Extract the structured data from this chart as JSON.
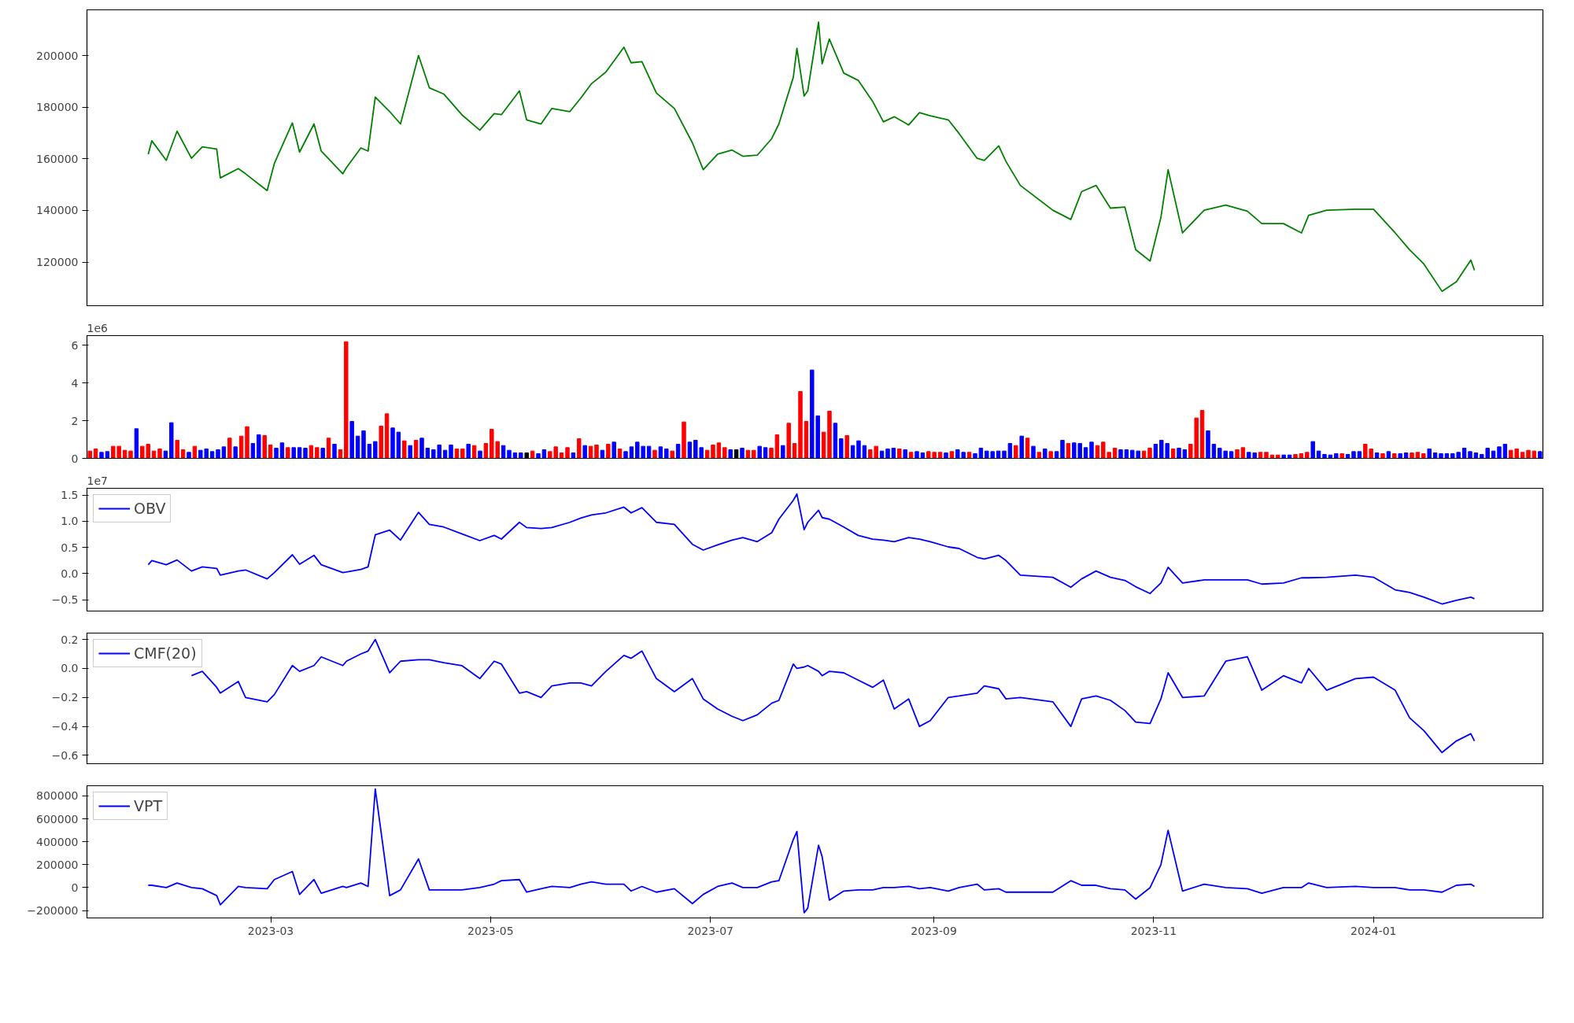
{
  "chart_data": [
    {
      "type": "line",
      "xlim": [
        "2023-01-09",
        "2024-02-17"
      ],
      "ylim": [
        103100,
        217700
      ],
      "yticks": [
        120000,
        140000,
        160000,
        180000,
        200000
      ],
      "tick_labels": "y",
      "x": [
        "2023-01-26",
        "2023-01-27",
        "2023-01-31",
        "2023-02-03",
        "2023-02-07",
        "2023-02-10",
        "2023-02-14",
        "2023-02-15",
        "2023-02-20",
        "2023-02-22",
        "2023-02-28",
        "2023-03-02",
        "2023-03-07",
        "2023-03-09",
        "2023-03-13",
        "2023-03-15",
        "2023-03-21",
        "2023-03-22",
        "2023-03-26",
        "2023-03-28",
        "2023-03-30",
        "2023-04-03",
        "2023-04-06",
        "2023-04-11",
        "2023-04-14",
        "2023-04-18",
        "2023-04-23",
        "2023-04-28",
        "2023-05-02",
        "2023-05-04",
        "2023-05-09",
        "2023-05-11",
        "2023-05-15",
        "2023-05-18",
        "2023-05-23",
        "2023-05-26",
        "2023-05-29",
        "2023-06-02",
        "2023-06-07",
        "2023-06-09",
        "2023-06-12",
        "2023-06-16",
        "2023-06-21",
        "2023-06-26",
        "2023-06-29",
        "2023-07-03",
        "2023-07-07",
        "2023-07-10",
        "2023-07-14",
        "2023-07-18",
        "2023-07-20",
        "2023-07-24",
        "2023-07-25",
        "2023-07-27",
        "2023-07-28",
        "2023-07-31",
        "2023-08-01",
        "2023-08-03",
        "2023-08-07",
        "2023-08-11",
        "2023-08-15",
        "2023-08-18",
        "2023-08-21",
        "2023-08-25",
        "2023-08-28",
        "2023-08-31",
        "2023-09-05",
        "2023-09-08",
        "2023-09-13",
        "2023-09-15",
        "2023-09-19",
        "2023-09-21",
        "2023-09-25",
        "2023-10-04",
        "2023-10-09",
        "2023-10-12",
        "2023-10-16",
        "2023-10-20",
        "2023-10-24",
        "2023-10-27",
        "2023-10-31",
        "2023-11-03",
        "2023-11-05",
        "2023-11-09",
        "2023-11-15",
        "2023-11-21",
        "2023-11-27",
        "2023-12-01",
        "2023-12-07",
        "2023-12-12",
        "2023-12-14",
        "2023-12-19",
        "2023-12-27",
        "2024-01-01",
        "2024-01-07",
        "2024-01-11",
        "2024-01-15",
        "2024-01-20",
        "2024-01-24",
        "2024-01-28",
        "2024-01-29"
      ],
      "series": [
        {
          "color": "#008000",
          "values": [
            161800,
            167000,
            159400,
            170700,
            160200,
            164600,
            163800,
            152600,
            156200,
            154200,
            147700,
            158200,
            173900,
            162600,
            173500,
            163000,
            154200,
            156600,
            164200,
            163000,
            183900,
            178300,
            173500,
            200000,
            187500,
            185100,
            177100,
            171100,
            177500,
            177100,
            186300,
            175100,
            173500,
            179500,
            178300,
            183500,
            189100,
            193600,
            203200,
            197200,
            197600,
            185500,
            179500,
            166200,
            155800,
            161800,
            163400,
            161000,
            161400,
            167800,
            173500,
            191600,
            202800,
            184300,
            186300,
            212900,
            196800,
            206400,
            193200,
            190400,
            182300,
            174300,
            176300,
            173100,
            177900,
            176700,
            175100,
            169800,
            160200,
            159400,
            165000,
            159000,
            149700,
            140100,
            136500,
            147300,
            149700,
            140900,
            141300,
            124800,
            120400,
            137300,
            155800,
            131300,
            140100,
            142100,
            139700,
            134900,
            134900,
            131300,
            138100,
            140100,
            140500,
            140500,
            131300,
            124800,
            119200,
            108700,
            112400,
            120800,
            116800
          ]
        }
      ]
    },
    {
      "type": "bar",
      "ylim": [
        0,
        6.5
      ],
      "yticks": [
        0,
        2,
        4,
        6
      ],
      "tick_labels": "y",
      "annotations": [
        "1e6"
      ],
      "categories": [
        null,
        null,
        null,
        null,
        null,
        null,
        null,
        null,
        null,
        null,
        null,
        null,
        null,
        null,
        null,
        null,
        null,
        null,
        null,
        null,
        null,
        null,
        null,
        null,
        null,
        null,
        null,
        null,
        null,
        null,
        null,
        null,
        null,
        null,
        null,
        null,
        null,
        null,
        null,
        null,
        null,
        null,
        null,
        null,
        null,
        null,
        null,
        null,
        null,
        null,
        null,
        null,
        null,
        null,
        null,
        null,
        null,
        null,
        null,
        null,
        null,
        null,
        null,
        null,
        null,
        null,
        null,
        null,
        null,
        null,
        null,
        null,
        null,
        null,
        null,
        null,
        null,
        null,
        null,
        null,
        null,
        null,
        null,
        null,
        null,
        null,
        null,
        null,
        null,
        null,
        null,
        null,
        null,
        null,
        null,
        null,
        null,
        null,
        null,
        null,
        null,
        null,
        null,
        null,
        null,
        null,
        null,
        null,
        null,
        null,
        null,
        null,
        null,
        null,
        null,
        null,
        null,
        null,
        null,
        null,
        null,
        null,
        null,
        null,
        null,
        null,
        null,
        null,
        null,
        null,
        null,
        null,
        null,
        null,
        null,
        null,
        null,
        null,
        null,
        null,
        null,
        null,
        null,
        null,
        null,
        null,
        null,
        null,
        null,
        null,
        null,
        null,
        null,
        null,
        null,
        null,
        null,
        null,
        null,
        null,
        null,
        null,
        null,
        null,
        null,
        null,
        null,
        null,
        null,
        null,
        null,
        null,
        null,
        null,
        null,
        null,
        null,
        null,
        null,
        null,
        null,
        null,
        null,
        null,
        null,
        null,
        null,
        null,
        null,
        null,
        null,
        null,
        null,
        null,
        null,
        null,
        null,
        null,
        null,
        null,
        null,
        null,
        null,
        null,
        null,
        null,
        null,
        null,
        null,
        null,
        null,
        null,
        null,
        null,
        null,
        null,
        null,
        null,
        null,
        null,
        null,
        null,
        null,
        null,
        null,
        null,
        null,
        null,
        null,
        null,
        null,
        null,
        null,
        null,
        null,
        null,
        null,
        null,
        null,
        null,
        null,
        null,
        null,
        null,
        null,
        null,
        null,
        null,
        null,
        null
      ],
      "values": [
        0.39,
        0.5,
        0.32,
        0.36,
        0.64,
        0.64,
        0.43,
        0.39,
        1.57,
        0.64,
        0.75,
        0.39,
        0.5,
        0.39,
        1.89,
        0.96,
        0.46,
        0.32,
        0.64,
        0.43,
        0.5,
        0.36,
        0.46,
        0.61,
        1.07,
        0.61,
        1.18,
        1.68,
        0.79,
        1.25,
        1.21,
        0.71,
        0.54,
        0.82,
        0.57,
        0.57,
        0.57,
        0.54,
        0.68,
        0.57,
        0.54,
        1.07,
        0.75,
        0.46,
        6.18,
        1.96,
        1.18,
        1.46,
        0.75,
        0.89,
        1.71,
        2.36,
        1.61,
        1.39,
        0.93,
        0.68,
        0.96,
        1.07,
        0.54,
        0.46,
        0.71,
        0.43,
        0.71,
        0.5,
        0.5,
        0.75,
        0.68,
        0.39,
        0.79,
        1.54,
        0.89,
        0.68,
        0.43,
        0.29,
        0.29,
        0.29,
        0.39,
        0.25,
        0.46,
        0.36,
        0.61,
        0.29,
        0.57,
        0.29,
        1.04,
        0.68,
        0.64,
        0.71,
        0.43,
        0.75,
        0.86,
        0.5,
        0.36,
        0.61,
        0.86,
        0.64,
        0.64,
        0.43,
        0.61,
        0.5,
        0.39,
        0.75,
        1.93,
        0.86,
        0.96,
        0.57,
        0.43,
        0.71,
        0.82,
        0.57,
        0.46,
        0.46,
        0.54,
        0.43,
        0.43,
        0.64,
        0.57,
        0.54,
        1.25,
        0.68,
        1.86,
        0.79,
        3.54,
        1.96,
        4.68,
        2.25,
        1.39,
        2.5,
        1.86,
        1.04,
        1.21,
        0.68,
        0.93,
        0.68,
        0.46,
        0.64,
        0.39,
        0.5,
        0.54,
        0.5,
        0.46,
        0.32,
        0.36,
        0.29,
        0.36,
        0.32,
        0.32,
        0.29,
        0.36,
        0.46,
        0.32,
        0.32,
        0.25,
        0.54,
        0.39,
        0.36,
        0.39,
        0.39,
        0.79,
        0.68,
        1.18,
        1.07,
        0.64,
        0.32,
        0.5,
        0.36,
        0.36,
        0.96,
        0.79,
        0.82,
        0.79,
        0.57,
        0.86,
        0.68,
        0.86,
        0.32,
        0.54,
        0.46,
        0.46,
        0.43,
        0.39,
        0.39,
        0.54,
        0.75,
        0.96,
        0.79,
        0.5,
        0.54,
        0.46,
        0.75,
        2.14,
        2.54,
        1.46,
        0.75,
        0.54,
        0.39,
        0.36,
        0.46,
        0.57,
        0.32,
        0.29,
        0.32,
        0.32,
        0.18,
        0.18,
        0.18,
        0.18,
        0.21,
        0.25,
        0.32,
        0.89,
        0.39,
        0.21,
        0.18,
        0.25,
        0.25,
        0.21,
        0.36,
        0.36,
        0.75,
        0.5,
        0.29,
        0.25,
        0.36,
        0.25,
        0.25,
        0.29,
        0.29,
        0.32,
        0.25,
        0.5,
        0.29,
        0.25,
        0.25,
        0.25,
        0.32,
        0.54,
        0.36,
        0.29,
        0.21,
        0.54,
        0.39,
        0.61,
        0.75,
        0.43,
        0.5,
        0.32,
        0.43,
        0.39,
        0.36
      ],
      "colors": [
        "#ff0000",
        "#ff0000",
        "#0000ff",
        "#0000ff",
        "#ff0000",
        "#ff0000",
        "#ff0000",
        "#ff0000",
        "#0000ff",
        "#ff0000",
        "#ff0000",
        "#ff0000",
        "#ff0000",
        "#0000ff",
        "#0000ff",
        "#ff0000",
        "#ff0000",
        "#0000ff",
        "#ff0000",
        "#0000ff",
        "#0000ff",
        "#0000ff",
        "#0000ff",
        "#0000ff",
        "#ff0000",
        "#0000ff",
        "#ff0000",
        "#ff0000",
        "#0000ff",
        "#0000ff",
        "#ff0000",
        "#ff0000",
        "#0000ff",
        "#0000ff",
        "#ff0000",
        "#0000ff",
        "#0000ff",
        "#0000ff",
        "#ff0000",
        "#ff0000",
        "#0000ff",
        "#ff0000",
        "#0000ff",
        "#ff0000",
        "#ff0000",
        "#0000ff",
        "#0000ff",
        "#0000ff",
        "#0000ff",
        "#0000ff",
        "#ff0000",
        "#ff0000",
        "#0000ff",
        "#0000ff",
        "#ff0000",
        "#0000ff",
        "#ff0000",
        "#0000ff",
        "#0000ff",
        "#0000ff",
        "#0000ff",
        "#0000ff",
        "#0000ff",
        "#ff0000",
        "#ff0000",
        "#0000ff",
        "#ff0000",
        "#0000ff",
        "#ff0000",
        "#ff0000",
        "#ff0000",
        "#0000ff",
        "#0000ff",
        "#0000ff",
        "#0000ff",
        "#000000",
        "#ff0000",
        "#0000ff",
        "#0000ff",
        "#ff0000",
        "#ff0000",
        "#ff0000",
        "#ff0000",
        "#0000ff",
        "#ff0000",
        "#0000ff",
        "#ff0000",
        "#ff0000",
        "#0000ff",
        "#ff0000",
        "#0000ff",
        "#ff0000",
        "#0000ff",
        "#0000ff",
        "#0000ff",
        "#0000ff",
        "#0000ff",
        "#ff0000",
        "#0000ff",
        "#0000ff",
        "#ff0000",
        "#0000ff",
        "#ff0000",
        "#0000ff",
        "#0000ff",
        "#0000ff",
        "#ff0000",
        "#ff0000",
        "#ff0000",
        "#ff0000",
        "#0000ff",
        "#000000",
        "#0000ff",
        "#ff0000",
        "#ff0000",
        "#0000ff",
        "#0000ff",
        "#ff0000",
        "#ff0000",
        "#0000ff",
        "#ff0000",
        "#ff0000",
        "#ff0000",
        "#ff0000",
        "#0000ff",
        "#0000ff",
        "#ff0000",
        "#ff0000",
        "#0000ff",
        "#0000ff",
        "#ff0000",
        "#0000ff",
        "#0000ff",
        "#0000ff",
        "#ff0000",
        "#ff0000",
        "#0000ff",
        "#0000ff",
        "#0000ff",
        "#ff0000",
        "#0000ff",
        "#ff0000",
        "#0000ff",
        "#0000ff",
        "#ff0000",
        "#ff0000",
        "#ff0000",
        "#0000ff",
        "#ff0000",
        "#0000ff",
        "#0000ff",
        "#ff0000",
        "#0000ff",
        "#0000ff",
        "#0000ff",
        "#0000ff",
        "#0000ff",
        "#0000ff",
        "#0000ff",
        "#ff0000",
        "#0000ff",
        "#ff0000",
        "#0000ff",
        "#ff0000",
        "#0000ff",
        "#ff0000",
        "#0000ff",
        "#0000ff",
        "#ff0000",
        "#0000ff",
        "#0000ff",
        "#0000ff",
        "#0000ff",
        "#ff0000",
        "#ff0000",
        "#ff0000",
        "#ff0000",
        "#0000ff",
        "#0000ff",
        "#0000ff",
        "#0000ff",
        "#ff0000",
        "#ff0000",
        "#0000ff",
        "#0000ff",
        "#0000ff",
        "#ff0000",
        "#0000ff",
        "#0000ff",
        "#ff0000",
        "#ff0000",
        "#ff0000",
        "#0000ff",
        "#0000ff",
        "#0000ff",
        "#0000ff",
        "#0000ff",
        "#ff0000",
        "#ff0000",
        "#0000ff",
        "#0000ff",
        "#ff0000",
        "#ff0000",
        "#ff0000",
        "#ff0000",
        "#0000ff",
        "#0000ff",
        "#ff0000",
        "#ff0000",
        "#ff0000",
        "#0000ff",
        "#0000ff",
        "#0000ff",
        "#0000ff",
        "#0000ff",
        "#ff0000",
        "#0000ff",
        "#0000ff",
        "#0000ff",
        "#ff0000",
        "#ff0000",
        "#0000ff",
        "#ff0000",
        "#0000ff",
        "#ff0000",
        "#0000ff",
        "#0000ff",
        "#ff0000",
        "#ff0000",
        "#ff0000",
        "#0000ff",
        "#0000ff",
        "#0000ff",
        "#0000ff",
        "#0000ff",
        "#0000ff",
        "#0000ff",
        "#0000ff",
        "#0000ff",
        "#0000ff",
        "#0000ff",
        "#0000ff",
        "#0000ff",
        "#0000ff",
        "#ff0000",
        "#ff0000",
        "#ff0000",
        "#ff0000",
        "#ff0000",
        "#0000ff"
      ]
    },
    {
      "type": "line",
      "xlim": [
        "2023-01-09",
        "2024-02-17"
      ],
      "ylim": [
        -0.715,
        1.63
      ],
      "yticks": [
        {
          "value": -0.5,
          "label": "−0.5"
        },
        {
          "value": 0,
          "label": "0.0"
        },
        {
          "value": 0.5,
          "label": "0.5"
        },
        {
          "value": 1.0,
          "label": "1.0"
        },
        {
          "value": 1.5,
          "label": "1.5"
        }
      ],
      "tick_labels": "y",
      "annotations": [
        "1e7"
      ],
      "legend": "top left",
      "x": [
        "2023-01-26",
        "2023-01-27",
        "2023-01-31",
        "2023-02-03",
        "2023-02-07",
        "2023-02-10",
        "2023-02-14",
        "2023-02-15",
        "2023-02-20",
        "2023-02-22",
        "2023-02-28",
        "2023-03-02",
        "2023-03-07",
        "2023-03-09",
        "2023-03-13",
        "2023-03-15",
        "2023-03-21",
        "2023-03-22",
        "2023-03-26",
        "2023-03-28",
        "2023-03-30",
        "2023-04-03",
        "2023-04-06",
        "2023-04-11",
        "2023-04-14",
        "2023-04-18",
        "2023-04-23",
        "2023-04-28",
        "2023-05-02",
        "2023-05-04",
        "2023-05-09",
        "2023-05-11",
        "2023-05-15",
        "2023-05-18",
        "2023-05-23",
        "2023-05-26",
        "2023-05-29",
        "2023-06-02",
        "2023-06-07",
        "2023-06-09",
        "2023-06-12",
        "2023-06-16",
        "2023-06-21",
        "2023-06-26",
        "2023-06-29",
        "2023-07-03",
        "2023-07-07",
        "2023-07-10",
        "2023-07-14",
        "2023-07-18",
        "2023-07-20",
        "2023-07-24",
        "2023-07-25",
        "2023-07-27",
        "2023-07-28",
        "2023-07-31",
        "2023-08-01",
        "2023-08-03",
        "2023-08-07",
        "2023-08-11",
        "2023-08-15",
        "2023-08-18",
        "2023-08-21",
        "2023-08-25",
        "2023-08-28",
        "2023-08-31",
        "2023-09-05",
        "2023-09-08",
        "2023-09-13",
        "2023-09-15",
        "2023-09-19",
        "2023-09-21",
        "2023-09-25",
        "2023-10-04",
        "2023-10-09",
        "2023-10-12",
        "2023-10-16",
        "2023-10-20",
        "2023-10-24",
        "2023-10-27",
        "2023-10-31",
        "2023-11-03",
        "2023-11-05",
        "2023-11-09",
        "2023-11-15",
        "2023-11-21",
        "2023-11-27",
        "2023-12-01",
        "2023-12-07",
        "2023-12-12",
        "2023-12-14",
        "2023-12-19",
        "2023-12-27",
        "2024-01-01",
        "2024-01-07",
        "2024-01-11",
        "2024-01-15",
        "2024-01-20",
        "2024-01-24",
        "2024-01-28",
        "2024-01-29"
      ],
      "series": [
        {
          "name": "OBV",
          "color": "#0000ff",
          "values": [
            0.17,
            0.25,
            0.17,
            0.26,
            0.05,
            0.13,
            0.1,
            -0.03,
            0.05,
            0.07,
            -0.1,
            0.02,
            0.36,
            0.18,
            0.35,
            0.17,
            0.02,
            0.03,
            0.08,
            0.13,
            0.74,
            0.83,
            0.64,
            1.17,
            0.94,
            0.89,
            0.76,
            0.63,
            0.73,
            0.66,
            0.98,
            0.88,
            0.86,
            0.88,
            0.98,
            1.06,
            1.12,
            1.16,
            1.27,
            1.16,
            1.26,
            0.98,
            0.94,
            0.56,
            0.45,
            0.55,
            0.64,
            0.69,
            0.61,
            0.78,
            1.04,
            1.4,
            1.52,
            0.84,
            0.98,
            1.21,
            1.07,
            1.04,
            0.89,
            0.73,
            0.66,
            0.64,
            0.61,
            0.69,
            0.66,
            0.61,
            0.51,
            0.48,
            0.31,
            0.28,
            0.35,
            0.25,
            -0.03,
            -0.07,
            -0.26,
            -0.1,
            0.05,
            -0.07,
            -0.13,
            -0.25,
            -0.38,
            -0.18,
            0.12,
            -0.18,
            -0.12,
            -0.12,
            -0.12,
            -0.2,
            -0.18,
            -0.08,
            -0.08,
            -0.07,
            -0.03,
            -0.07,
            -0.31,
            -0.36,
            -0.45,
            -0.58,
            -0.51,
            -0.45,
            -0.48
          ]
        }
      ]
    },
    {
      "type": "line",
      "xlim": [
        "2023-01-09",
        "2024-02-17"
      ],
      "ylim": [
        -0.657,
        0.244
      ],
      "yticks": [
        {
          "value": -0.6,
          "label": "−0.6"
        },
        {
          "value": -0.4,
          "label": "−0.4"
        },
        {
          "value": -0.2,
          "label": "−0.2"
        },
        {
          "value": 0,
          "label": "0.0"
        },
        {
          "value": 0.2,
          "label": "0.2"
        }
      ],
      "tick_labels": "y",
      "legend": "top left",
      "x": [
        "2023-02-07",
        "2023-02-10",
        "2023-02-14",
        "2023-02-15",
        "2023-02-20",
        "2023-02-22",
        "2023-02-28",
        "2023-03-02",
        "2023-03-07",
        "2023-03-09",
        "2023-03-13",
        "2023-03-15",
        "2023-03-21",
        "2023-03-22",
        "2023-03-26",
        "2023-03-28",
        "2023-03-30",
        "2023-04-03",
        "2023-04-06",
        "2023-04-11",
        "2023-04-14",
        "2023-04-18",
        "2023-04-23",
        "2023-04-28",
        "2023-05-02",
        "2023-05-04",
        "2023-05-09",
        "2023-05-11",
        "2023-05-15",
        "2023-05-18",
        "2023-05-23",
        "2023-05-26",
        "2023-05-29",
        "2023-06-02",
        "2023-06-07",
        "2023-06-09",
        "2023-06-12",
        "2023-06-16",
        "2023-06-21",
        "2023-06-26",
        "2023-06-29",
        "2023-07-03",
        "2023-07-07",
        "2023-07-10",
        "2023-07-14",
        "2023-07-18",
        "2023-07-20",
        "2023-07-24",
        "2023-07-25",
        "2023-07-27",
        "2023-07-28",
        "2023-07-31",
        "2023-08-01",
        "2023-08-03",
        "2023-08-07",
        "2023-08-11",
        "2023-08-15",
        "2023-08-18",
        "2023-08-21",
        "2023-08-25",
        "2023-08-28",
        "2023-08-31",
        "2023-09-05",
        "2023-09-08",
        "2023-09-13",
        "2023-09-15",
        "2023-09-19",
        "2023-09-21",
        "2023-09-25",
        "2023-10-04",
        "2023-10-09",
        "2023-10-12",
        "2023-10-16",
        "2023-10-20",
        "2023-10-24",
        "2023-10-27",
        "2023-10-31",
        "2023-11-03",
        "2023-11-05",
        "2023-11-09",
        "2023-11-15",
        "2023-11-21",
        "2023-11-27",
        "2023-12-01",
        "2023-12-07",
        "2023-12-12",
        "2023-12-14",
        "2023-12-19",
        "2023-12-27",
        "2024-01-01",
        "2024-01-07",
        "2024-01-11",
        "2024-01-15",
        "2024-01-20",
        "2024-01-24",
        "2024-01-28",
        "2024-01-29"
      ],
      "series": [
        {
          "name": "CMF(20)",
          "color": "#0000ff",
          "values": [
            -0.05,
            -0.02,
            -0.13,
            -0.17,
            -0.09,
            -0.2,
            -0.23,
            -0.18,
            0.02,
            -0.02,
            0.02,
            0.08,
            0.02,
            0.05,
            0.1,
            0.12,
            0.2,
            -0.03,
            0.05,
            0.06,
            0.06,
            0.04,
            0.02,
            -0.07,
            0.05,
            0.03,
            -0.17,
            -0.16,
            -0.2,
            -0.12,
            -0.1,
            -0.1,
            -0.12,
            -0.02,
            0.09,
            0.07,
            0.12,
            -0.07,
            -0.16,
            -0.07,
            -0.21,
            -0.28,
            -0.33,
            -0.36,
            -0.32,
            -0.24,
            -0.22,
            0.03,
            0.0,
            0.01,
            0.02,
            -0.02,
            -0.05,
            -0.02,
            -0.03,
            -0.08,
            -0.13,
            -0.08,
            -0.28,
            -0.21,
            -0.4,
            -0.36,
            -0.2,
            -0.19,
            -0.17,
            -0.12,
            -0.14,
            -0.21,
            -0.2,
            -0.23,
            -0.4,
            -0.21,
            -0.19,
            -0.22,
            -0.29,
            -0.37,
            -0.38,
            -0.21,
            -0.03,
            -0.2,
            -0.19,
            0.05,
            0.08,
            -0.15,
            -0.05,
            -0.1,
            0.0,
            -0.15,
            -0.07,
            -0.06,
            -0.15,
            -0.34,
            -0.43,
            -0.58,
            -0.5,
            -0.45,
            -0.5
          ]
        }
      ]
    },
    {
      "type": "line",
      "xlim": [
        "2023-01-09",
        "2024-02-17"
      ],
      "ylim": [
        -265000,
        889000
      ],
      "yticks": [
        {
          "value": -200000,
          "label": "−200000"
        },
        0,
        200000,
        400000,
        600000,
        800000
      ],
      "xticks": [
        "2023-03",
        "2023-05",
        "2023-07",
        "2023-09",
        "2023-11",
        "2024-01"
      ],
      "legend": "top left",
      "x": [
        "2023-01-26",
        "2023-01-27",
        "2023-01-31",
        "2023-02-03",
        "2023-02-07",
        "2023-02-10",
        "2023-02-14",
        "2023-02-15",
        "2023-02-20",
        "2023-02-22",
        "2023-02-28",
        "2023-03-02",
        "2023-03-07",
        "2023-03-09",
        "2023-03-13",
        "2023-03-15",
        "2023-03-21",
        "2023-03-22",
        "2023-03-26",
        "2023-03-28",
        "2023-03-30",
        "2023-04-03",
        "2023-04-06",
        "2023-04-11",
        "2023-04-14",
        "2023-04-18",
        "2023-04-23",
        "2023-04-28",
        "2023-05-02",
        "2023-05-04",
        "2023-05-09",
        "2023-05-11",
        "2023-05-15",
        "2023-05-18",
        "2023-05-23",
        "2023-05-26",
        "2023-05-29",
        "2023-06-02",
        "2023-06-07",
        "2023-06-09",
        "2023-06-12",
        "2023-06-16",
        "2023-06-21",
        "2023-06-26",
        "2023-06-29",
        "2023-07-03",
        "2023-07-07",
        "2023-07-10",
        "2023-07-14",
        "2023-07-18",
        "2023-07-20",
        "2023-07-24",
        "2023-07-25",
        "2023-07-27",
        "2023-07-28",
        "2023-07-31",
        "2023-08-01",
        "2023-08-03",
        "2023-08-07",
        "2023-08-11",
        "2023-08-15",
        "2023-08-18",
        "2023-08-21",
        "2023-08-25",
        "2023-08-28",
        "2023-08-31",
        "2023-09-05",
        "2023-09-08",
        "2023-09-13",
        "2023-09-15",
        "2023-09-19",
        "2023-09-21",
        "2023-09-25",
        "2023-10-04",
        "2023-10-09",
        "2023-10-12",
        "2023-10-16",
        "2023-10-20",
        "2023-10-24",
        "2023-10-27",
        "2023-10-31",
        "2023-11-03",
        "2023-11-05",
        "2023-11-09",
        "2023-11-15",
        "2023-11-21",
        "2023-11-27",
        "2023-12-01",
        "2023-12-07",
        "2023-12-12",
        "2023-12-14",
        "2023-12-19",
        "2023-12-27",
        "2024-01-01",
        "2024-01-07",
        "2024-01-11",
        "2024-01-15",
        "2024-01-20",
        "2024-01-24",
        "2024-01-28",
        "2024-01-29"
      ],
      "series": [
        {
          "name": "VPT",
          "color": "#0000ff",
          "values": [
            20000,
            20000,
            0,
            40000,
            0,
            -10000,
            -70000,
            -150000,
            10000,
            0,
            -10000,
            70000,
            140000,
            -60000,
            70000,
            -50000,
            10000,
            0,
            40000,
            10000,
            860000,
            -70000,
            -20000,
            250000,
            -20000,
            -20000,
            -20000,
            0,
            30000,
            60000,
            70000,
            -40000,
            -10000,
            10000,
            0,
            30000,
            50000,
            30000,
            30000,
            -30000,
            10000,
            -40000,
            -10000,
            -140000,
            -60000,
            10000,
            40000,
            0,
            0,
            50000,
            60000,
            420000,
            490000,
            -220000,
            -180000,
            370000,
            270000,
            -110000,
            -30000,
            -20000,
            -20000,
            0,
            0,
            10000,
            -10000,
            0,
            -30000,
            0,
            30000,
            -20000,
            -10000,
            -40000,
            -40000,
            -40000,
            60000,
            20000,
            20000,
            -10000,
            -20000,
            -100000,
            0,
            200000,
            500000,
            -30000,
            30000,
            0,
            -10000,
            -50000,
            0,
            0,
            40000,
            0,
            10000,
            0,
            0,
            -20000,
            -20000,
            -40000,
            20000,
            30000,
            10000
          ]
        }
      ]
    }
  ]
}
